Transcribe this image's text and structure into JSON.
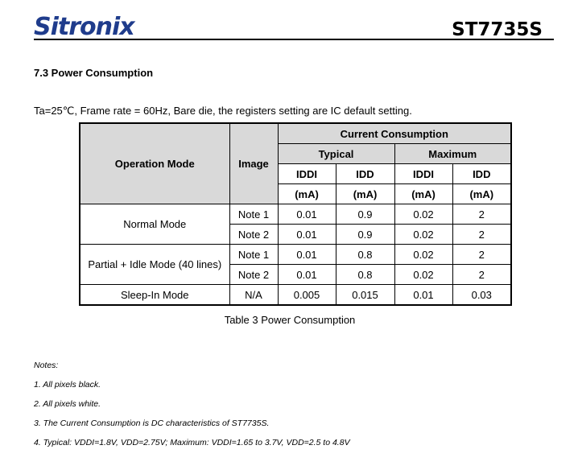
{
  "header": {
    "logo_text": "Sitronix",
    "part_number": "ST7735S"
  },
  "section_title": "7.3 Power Consumption",
  "conditions": "Ta=25℃, Frame rate = 60Hz, Bare die, the registers setting are IC default setting.",
  "table": {
    "headers": {
      "operation_mode": "Operation Mode",
      "image": "Image",
      "current_consumption": "Current Consumption",
      "typical": "Typical",
      "maximum": "Maximum",
      "iddi": "IDDI",
      "idd": "IDD",
      "unit": "(mA)"
    },
    "rows": [
      {
        "mode": "Normal Mode",
        "image": "Note 1",
        "typ_iddi": "0.01",
        "typ_idd": "0.9",
        "max_iddi": "0.02",
        "max_idd": "2"
      },
      {
        "mode": "",
        "image": "Note 2",
        "typ_iddi": "0.01",
        "typ_idd": "0.9",
        "max_iddi": "0.02",
        "max_idd": "2"
      },
      {
        "mode": "Partial + Idle Mode (40 lines)",
        "image": "Note 1",
        "typ_iddi": "0.01",
        "typ_idd": "0.8",
        "max_iddi": "0.02",
        "max_idd": "2"
      },
      {
        "mode": "",
        "image": "Note 2",
        "typ_iddi": "0.01",
        "typ_idd": "0.8",
        "max_iddi": "0.02",
        "max_idd": "2"
      },
      {
        "mode": "Sleep-In Mode",
        "image": "N/A",
        "typ_iddi": "0.005",
        "typ_idd": "0.015",
        "max_iddi": "0.01",
        "max_idd": "0.03"
      }
    ]
  },
  "caption": "Table 3 Power Consumption",
  "notes": {
    "title": "Notes:",
    "items": [
      "1. All pixels black.",
      "2. All pixels white.",
      "3. The Current Consumption is DC characteristics of ST7735S.",
      "4. Typical: VDDI=1.8V, VDD=2.75V; Maximum: VDDI=1.65 to 3.7V, VDD=2.5 to 4.8V"
    ]
  }
}
